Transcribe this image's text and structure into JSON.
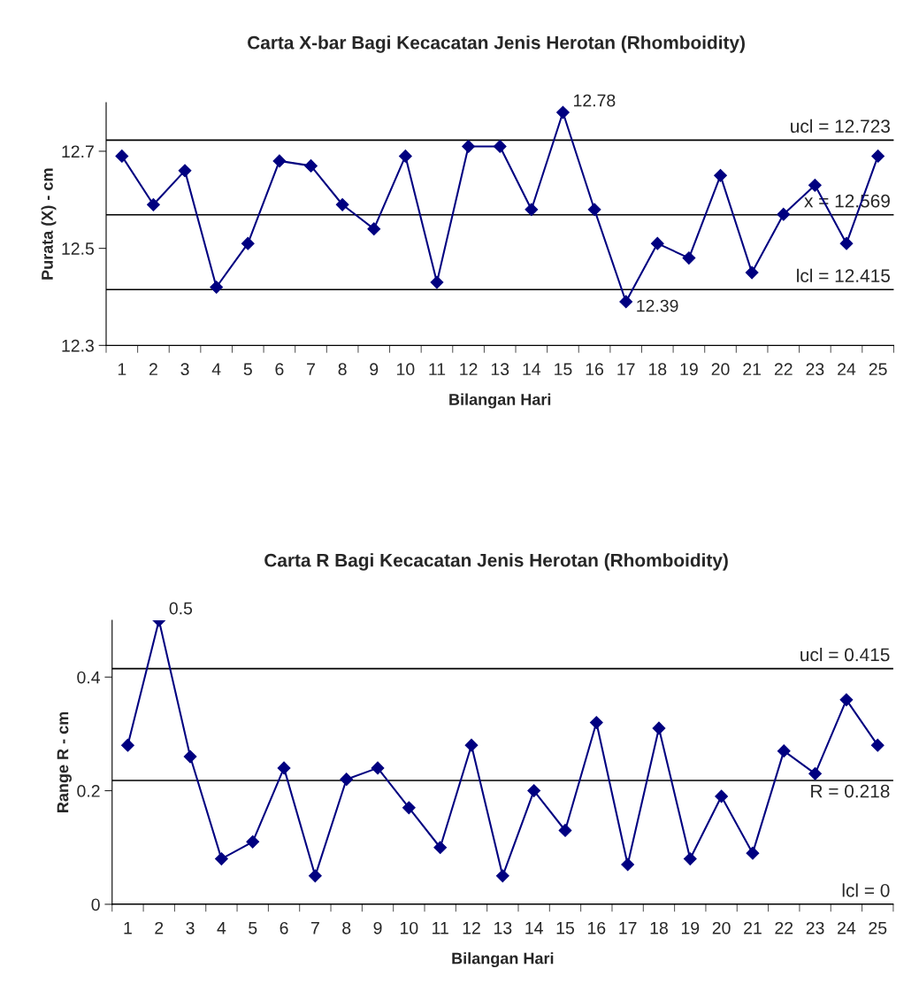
{
  "chart_data": [
    {
      "type": "line",
      "title": "Carta X-bar Bagi Kecacatan Jenis Herotan (Rhomboidity)",
      "xlabel": "Bilangan Hari",
      "ylabel": "Purata (X) - cm",
      "categories": [
        "1",
        "2",
        "3",
        "4",
        "5",
        "6",
        "7",
        "8",
        "9",
        "10",
        "11",
        "12",
        "13",
        "14",
        "15",
        "16",
        "17",
        "18",
        "19",
        "20",
        "21",
        "22",
        "23",
        "24",
        "25"
      ],
      "series": [
        {
          "color": "#000080",
          "values": [
            12.69,
            12.59,
            12.66,
            12.42,
            12.51,
            12.68,
            12.67,
            12.59,
            12.54,
            12.69,
            12.43,
            12.71,
            12.71,
            12.58,
            12.78,
            12.58,
            12.39,
            12.51,
            12.48,
            12.65,
            12.45,
            12.57,
            12.63,
            12.51,
            12.69
          ],
          "value_labels": [
            null,
            null,
            null,
            null,
            null,
            null,
            null,
            null,
            null,
            null,
            null,
            null,
            null,
            null,
            "12.78",
            null,
            "12.39",
            null,
            null,
            null,
            null,
            null,
            null,
            null,
            null
          ]
        }
      ],
      "marker": "diamond",
      "ylim": [
        12.3,
        12.8
      ],
      "yticks": [
        12.3,
        12.5,
        12.7
      ],
      "ref_lines": [
        {
          "axis": "y",
          "value": 12.723,
          "label": "ucl = 12.723",
          "color": "#000000"
        },
        {
          "axis": "y",
          "value": 12.569,
          "label": "x = 12.569",
          "color": "#000000"
        },
        {
          "axis": "y",
          "value": 12.415,
          "label": "lcl = 12.415",
          "color": "#000000"
        }
      ]
    },
    {
      "type": "line",
      "title": "Carta R Bagi Kecacatan Jenis Herotan (Rhomboidity)",
      "xlabel": "Bilangan Hari",
      "ylabel": "Range R - cm",
      "categories": [
        "1",
        "2",
        "3",
        "4",
        "5",
        "6",
        "7",
        "8",
        "9",
        "10",
        "11",
        "12",
        "13",
        "14",
        "15",
        "16",
        "17",
        "18",
        "19",
        "20",
        "21",
        "22",
        "23",
        "24",
        "25"
      ],
      "series": [
        {
          "color": "#000080",
          "values": [
            0.28,
            0.5,
            0.26,
            0.08,
            0.11,
            0.24,
            0.05,
            0.22,
            0.24,
            0.17,
            0.1,
            0.28,
            0.05,
            0.2,
            0.13,
            0.32,
            0.07,
            0.31,
            0.08,
            0.19,
            0.09,
            0.27,
            0.23,
            0.36,
            0.28
          ],
          "value_labels": [
            null,
            "0.5",
            null,
            null,
            null,
            null,
            null,
            null,
            null,
            null,
            null,
            null,
            null,
            null,
            null,
            null,
            null,
            null,
            null,
            null,
            null,
            null,
            null,
            null,
            null
          ]
        }
      ],
      "marker": "diamond",
      "ylim": [
        0,
        0.5
      ],
      "yticks": [
        0,
        0.2,
        0.4
      ],
      "ref_lines": [
        {
          "axis": "y",
          "value": 0.415,
          "label": "ucl = 0.415",
          "color": "#000000"
        },
        {
          "axis": "y",
          "value": 0.218,
          "label": "R = 0.218",
          "color": "#000000"
        },
        {
          "axis": "y",
          "value": 0,
          "label": "lcl = 0",
          "color": "#000000"
        }
      ]
    }
  ]
}
